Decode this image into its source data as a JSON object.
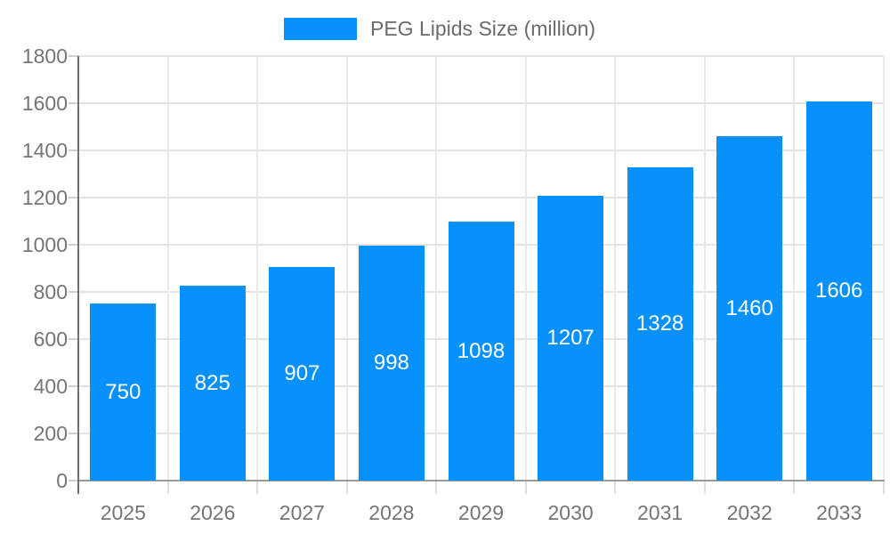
{
  "chart_data": {
    "type": "bar",
    "title": "PEG Lipids Size (million)",
    "categories": [
      "2025",
      "2026",
      "2027",
      "2028",
      "2029",
      "2030",
      "2031",
      "2032",
      "2033"
    ],
    "values": [
      750,
      825,
      907,
      998,
      1098,
      1207,
      1328,
      1460,
      1606
    ],
    "xlabel": "",
    "ylabel": "",
    "ylim": [
      0,
      1800
    ],
    "ytick_step": 200,
    "ytick_labels": [
      "0",
      "200",
      "400",
      "600",
      "800",
      "1000",
      "1200",
      "1400",
      "1600",
      "1800"
    ],
    "grid": true,
    "legend_position": "top",
    "bar_labels_inside": true
  },
  "style": {
    "bar_color": "#0891FA",
    "bar_label_color": "#FFFFFF",
    "axis_label_color": "#757575",
    "legend_text_color": "#6B6B6B",
    "h_grid_color": "#E4E4E4",
    "v_grid_color": "#E9E9E9",
    "x_axis_line_color": "#9B9B9B",
    "y_axis_line_color": "#6E7079",
    "y_tick_color": "#CFCFCF",
    "x_tick_color": "#DFDFDF",
    "background": "#FFFFFF"
  }
}
